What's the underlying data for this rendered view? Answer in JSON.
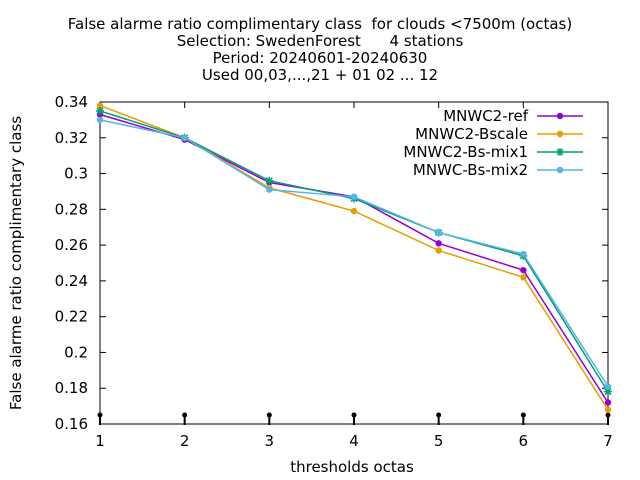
{
  "chart_data": {
    "type": "line",
    "title_lines": [
      "False alarme ratio complimentary class  for clouds <7500m (octas)",
      "Selection: SwedenForest      4 stations",
      "Period: 20240601-20240630",
      "Used 00,03,...,21 + 01 02 ... 12"
    ],
    "xlabel": "thresholds octas",
    "ylabel": "False alarme ratio complimentary class",
    "x": [
      1,
      2,
      3,
      4,
      5,
      6,
      7
    ],
    "xlim": [
      1,
      7
    ],
    "ylim": [
      0.16,
      0.34
    ],
    "xticks": [
      "1",
      "2",
      "3",
      "4",
      "5",
      "6",
      "7"
    ],
    "yticks": [
      "0.16",
      "0.18",
      "0.2",
      "0.22",
      "0.24",
      "0.26",
      "0.28",
      "0.3",
      "0.32",
      "0.34"
    ],
    "ytick_values": [
      0.16,
      0.18,
      0.2,
      0.22,
      0.24,
      0.26,
      0.28,
      0.3,
      0.32,
      0.34
    ],
    "grid": false,
    "legend_position": "top-right",
    "series": [
      {
        "name": "MNWC2-ref",
        "color": "#9400d3",
        "marker": "circle",
        "values": [
          0.333,
          0.319,
          0.295,
          0.287,
          0.261,
          0.246,
          0.172
        ]
      },
      {
        "name": "MNWC2-Bscale",
        "color": "#e69f00",
        "marker": "circle",
        "values": [
          0.338,
          0.32,
          0.292,
          0.279,
          0.257,
          0.242,
          0.168
        ]
      },
      {
        "name": "MNWC2-Bs-mix1",
        "color": "#009e73",
        "marker": "star",
        "values": [
          0.335,
          0.32,
          0.296,
          0.286,
          0.267,
          0.254,
          0.178
        ]
      },
      {
        "name": "MNWC-Bs-mix2",
        "color": "#56b4e9",
        "marker": "circle",
        "values": [
          0.33,
          0.32,
          0.291,
          0.287,
          0.267,
          0.255,
          0.181
        ]
      }
    ],
    "baseline_markers": [
      0.16,
      0.16,
      0.16,
      0.16,
      0.16,
      0.16,
      0.16
    ]
  }
}
